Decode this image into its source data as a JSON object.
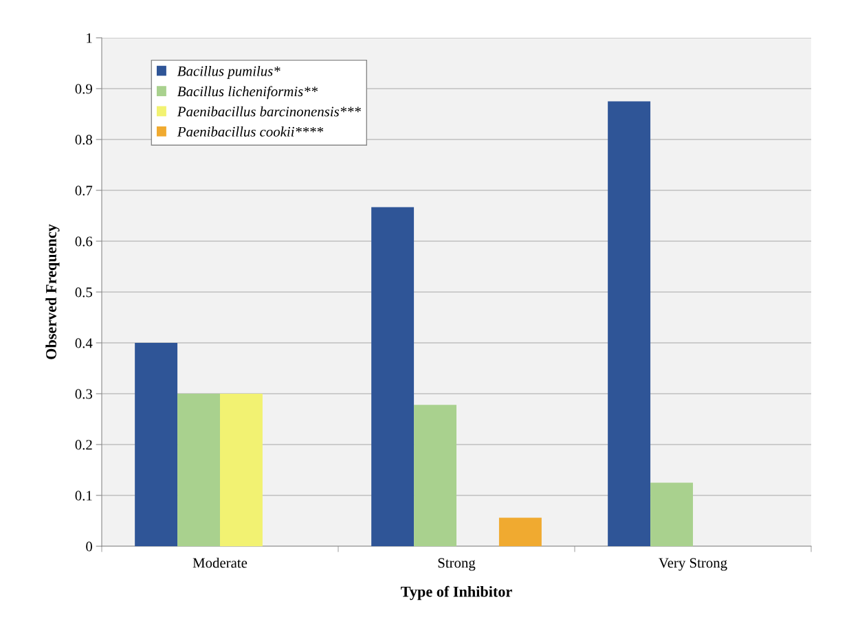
{
  "chart_data": {
    "type": "bar",
    "xlabel": "Type of Inhibitor",
    "ylabel": "Observed Frequency",
    "categories": [
      "Moderate",
      "Strong",
      "Very Strong"
    ],
    "series": [
      {
        "name": "Bacillus pumilus*",
        "color": "#2f5597",
        "values": [
          0.4,
          0.667,
          0.875
        ]
      },
      {
        "name": "Bacillus licheniformis**",
        "color": "#a9d18e",
        "values": [
          0.3,
          0.278,
          0.125
        ]
      },
      {
        "name": "Paenibacillus barcinonensis***",
        "color": "#f2f272",
        "values": [
          0.3,
          0,
          0
        ]
      },
      {
        "name": "Paenibacillus cookii****",
        "color": "#f0aa30",
        "values": [
          0,
          0.056,
          0
        ]
      }
    ],
    "ylim": [
      0,
      1
    ],
    "yticks": [
      0,
      0.1,
      0.2,
      0.3,
      0.4,
      0.5,
      0.6,
      0.7,
      0.8,
      0.9,
      1
    ],
    "grid": "y",
    "legend": "top left"
  }
}
